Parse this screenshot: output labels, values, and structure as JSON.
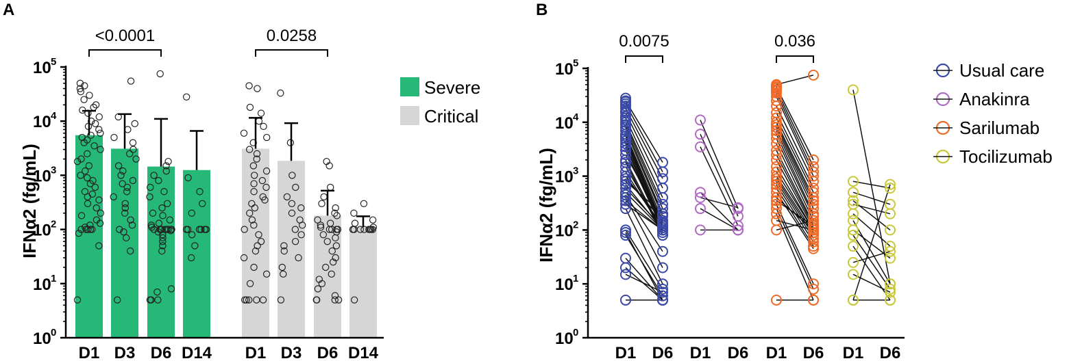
{
  "panel_a_label": "A",
  "panel_b_label": "B",
  "chart_data": [
    {
      "panel": "A",
      "type": "bar",
      "yscale": "log",
      "ylim": [
        1,
        100000
      ],
      "ylabel": "IFNα2 (fg/mL)",
      "ytick_exponents": [
        0,
        1,
        2,
        3,
        4,
        5
      ],
      "legend": [
        {
          "name": "Severe",
          "color": "#25b876"
        },
        {
          "name": "Critical",
          "color": "#d6d6d6"
        }
      ],
      "groups": [
        {
          "name": "Severe",
          "color": "#25b876",
          "categories": [
            "D1",
            "D3",
            "D6",
            "D14"
          ],
          "means": [
            5500,
            3100,
            1450,
            1250
          ],
          "error_upper": [
            15500,
            13500,
            11000,
            6600
          ],
          "points": [
            [
              5,
              50,
              85,
              100,
              100,
              100,
              100,
              100,
              110,
              120,
              130,
              150,
              180,
              200,
              250,
              300,
              350,
              400,
              450,
              500,
              600,
              700,
              800,
              900,
              1000,
              1200,
              1500,
              1800,
              2000,
              2500,
              3000,
              3500,
              4000,
              4500,
              5000,
              5500,
              6000,
              7000,
              8000,
              9000,
              10000,
              12000,
              14000,
              16000,
              18000,
              20000,
              25000,
              30000,
              35000,
              40000,
              45000,
              50000
            ],
            [
              5,
              40,
              70,
              90,
              100,
              120,
              150,
              200,
              250,
              300,
              400,
              500,
              600,
              700,
              800,
              1000,
              1200,
              1500,
              2000,
              2500,
              3000,
              4000,
              5000,
              7000,
              9000,
              12000,
              55000
            ],
            [
              5,
              5,
              5,
              7,
              8,
              40,
              50,
              60,
              70,
              80,
              90,
              95,
              100,
              100,
              100,
              100,
              100,
              100,
              100,
              100,
              100,
              100,
              110,
              120,
              130,
              150,
              180,
              200,
              250,
              300,
              400,
              500,
              600,
              800,
              1000,
              1200,
              1500,
              1800,
              75000
            ],
            [
              30,
              50,
              80,
              100,
              100,
              100,
              100,
              100,
              100,
              100,
              200,
              300,
              500,
              900,
              28000
            ]
          ]
        },
        {
          "name": "Critical",
          "color": "#d6d6d6",
          "categories": [
            "D1",
            "D3",
            "D6",
            "D14"
          ],
          "means": [
            3100,
            1850,
            180,
            110
          ],
          "error_upper": [
            11500,
            9200,
            520,
            175
          ],
          "points": [
            [
              5,
              5,
              5,
              5,
              5,
              10,
              15,
              20,
              30,
              40,
              50,
              60,
              80,
              100,
              120,
              150,
              200,
              250,
              300,
              350,
              400,
              500,
              600,
              700,
              800,
              1000,
              1200,
              1500,
              2000,
              2500,
              3000,
              4000,
              5000,
              6000,
              8000,
              10000,
              14000,
              18000,
              40000,
              45000
            ],
            [
              5,
              15,
              20,
              30,
              40,
              50,
              60,
              80,
              100,
              120,
              150,
              200,
              250,
              300,
              400,
              600,
              1000,
              4000,
              33000
            ],
            [
              5,
              5,
              5,
              5,
              6,
              8,
              10,
              12,
              15,
              20,
              25,
              30,
              40,
              50,
              60,
              70,
              80,
              90,
              100,
              100,
              100,
              100,
              110,
              120,
              130,
              150,
              180,
              200,
              250,
              300,
              400,
              600,
              1500,
              1800
            ],
            [
              5,
              100,
              100,
              100,
              100,
              100,
              100,
              100,
              100,
              110,
              130,
              150,
              200,
              300
            ]
          ]
        }
      ],
      "comparisons": [
        {
          "group": 0,
          "from": 0,
          "to": 2,
          "label": "<0.0001"
        },
        {
          "group": 1,
          "from": 0,
          "to": 2,
          "label": "0.0258"
        }
      ]
    },
    {
      "panel": "B",
      "type": "scatter",
      "subtype": "paired",
      "yscale": "log",
      "ylim": [
        1,
        100000
      ],
      "ylabel": "IFNα2 (fg/mL)",
      "ytick_exponents": [
        0,
        1,
        2,
        3,
        4,
        5
      ],
      "series": [
        {
          "name": "Usual care",
          "color": "#3b4aa8",
          "categories": [
            "D1",
            "D6"
          ],
          "pairs": [
            [
              25000,
              1800
            ],
            [
              22000,
              1200
            ],
            [
              18000,
              900
            ],
            [
              15000,
              600
            ],
            [
              12000,
              400
            ],
            [
              10000,
              300
            ],
            [
              9000,
              250
            ],
            [
              8000,
              200
            ],
            [
              7000,
              180
            ],
            [
              6000,
              150
            ],
            [
              5500,
              130
            ],
            [
              5000,
              120
            ],
            [
              4500,
              110
            ],
            [
              4000,
              100
            ],
            [
              3500,
              100
            ],
            [
              3000,
              100
            ],
            [
              2500,
              140
            ],
            [
              2000,
              90
            ],
            [
              1800,
              80
            ],
            [
              1500,
              100
            ],
            [
              1200,
              100
            ],
            [
              1000,
              120
            ],
            [
              900,
              150
            ],
            [
              800,
              200
            ],
            [
              700,
              100
            ],
            [
              600,
              110
            ],
            [
              500,
              100
            ],
            [
              450,
              40
            ],
            [
              400,
              20
            ],
            [
              350,
              100
            ],
            [
              300,
              100
            ],
            [
              250,
              10
            ],
            [
              100,
              8
            ],
            [
              90,
              5
            ],
            [
              80,
              6
            ],
            [
              30,
              5
            ],
            [
              20,
              5
            ],
            [
              15,
              7
            ],
            [
              5,
              5
            ]
          ],
          "d1_only": [
            28000,
            24000,
            20000,
            16000,
            13000,
            11000
          ]
        },
        {
          "name": "Anakinra",
          "color": "#b06bc4",
          "categories": [
            "D1",
            "D6"
          ],
          "pairs": [
            [
              11000,
              250
            ],
            [
              6000,
              180
            ],
            [
              3500,
              120
            ],
            [
              500,
              100
            ],
            [
              400,
              260
            ],
            [
              250,
              100
            ],
            [
              100,
              100
            ]
          ],
          "d1_only": []
        },
        {
          "name": "Sarilumab",
          "color": "#f06a28",
          "categories": [
            "D1",
            "D6"
          ],
          "pairs": [
            [
              50000,
              75000
            ],
            [
              45000,
              2000
            ],
            [
              40000,
              1500
            ],
            [
              35000,
              1200
            ],
            [
              30000,
              1000
            ],
            [
              20000,
              800
            ],
            [
              15000,
              600
            ],
            [
              12000,
              500
            ],
            [
              10000,
              400
            ],
            [
              9000,
              350
            ],
            [
              8000,
              300
            ],
            [
              7000,
              250
            ],
            [
              6000,
              200
            ],
            [
              5000,
              180
            ],
            [
              4000,
              150
            ],
            [
              3000,
              130
            ],
            [
              2500,
              120
            ],
            [
              2000,
              110
            ],
            [
              1500,
              100
            ],
            [
              1200,
              100
            ],
            [
              1000,
              90
            ],
            [
              900,
              80
            ],
            [
              800,
              70
            ],
            [
              700,
              60
            ],
            [
              600,
              50
            ],
            [
              500,
              45
            ],
            [
              400,
              100
            ],
            [
              350,
              120
            ],
            [
              300,
              10
            ],
            [
              250,
              8
            ],
            [
              200,
              5
            ],
            [
              150,
              100
            ],
            [
              100,
              150
            ],
            [
              5,
              5
            ]
          ],
          "d1_only": [
            48000,
            43000,
            38000,
            25000
          ]
        },
        {
          "name": "Tocilizumab",
          "color": "#c8c83a",
          "categories": [
            "D1",
            "D6"
          ],
          "pairs": [
            [
              40000,
              10
            ],
            [
              800,
              600
            ],
            [
              500,
              300
            ],
            [
              350,
              100
            ],
            [
              300,
              200
            ],
            [
              200,
              50
            ],
            [
              150,
              10
            ],
            [
              100,
              30
            ],
            [
              80,
              8
            ],
            [
              50,
              5
            ],
            [
              25,
              40
            ],
            [
              15,
              7
            ],
            [
              5,
              5
            ],
            [
              5,
              700
            ]
          ],
          "d1_only": []
        }
      ],
      "comparisons": [
        {
          "group": 0,
          "from": 0,
          "to": 1,
          "label": "0.0075"
        },
        {
          "group": 2,
          "from": 0,
          "to": 1,
          "label": "0.036"
        }
      ]
    }
  ]
}
